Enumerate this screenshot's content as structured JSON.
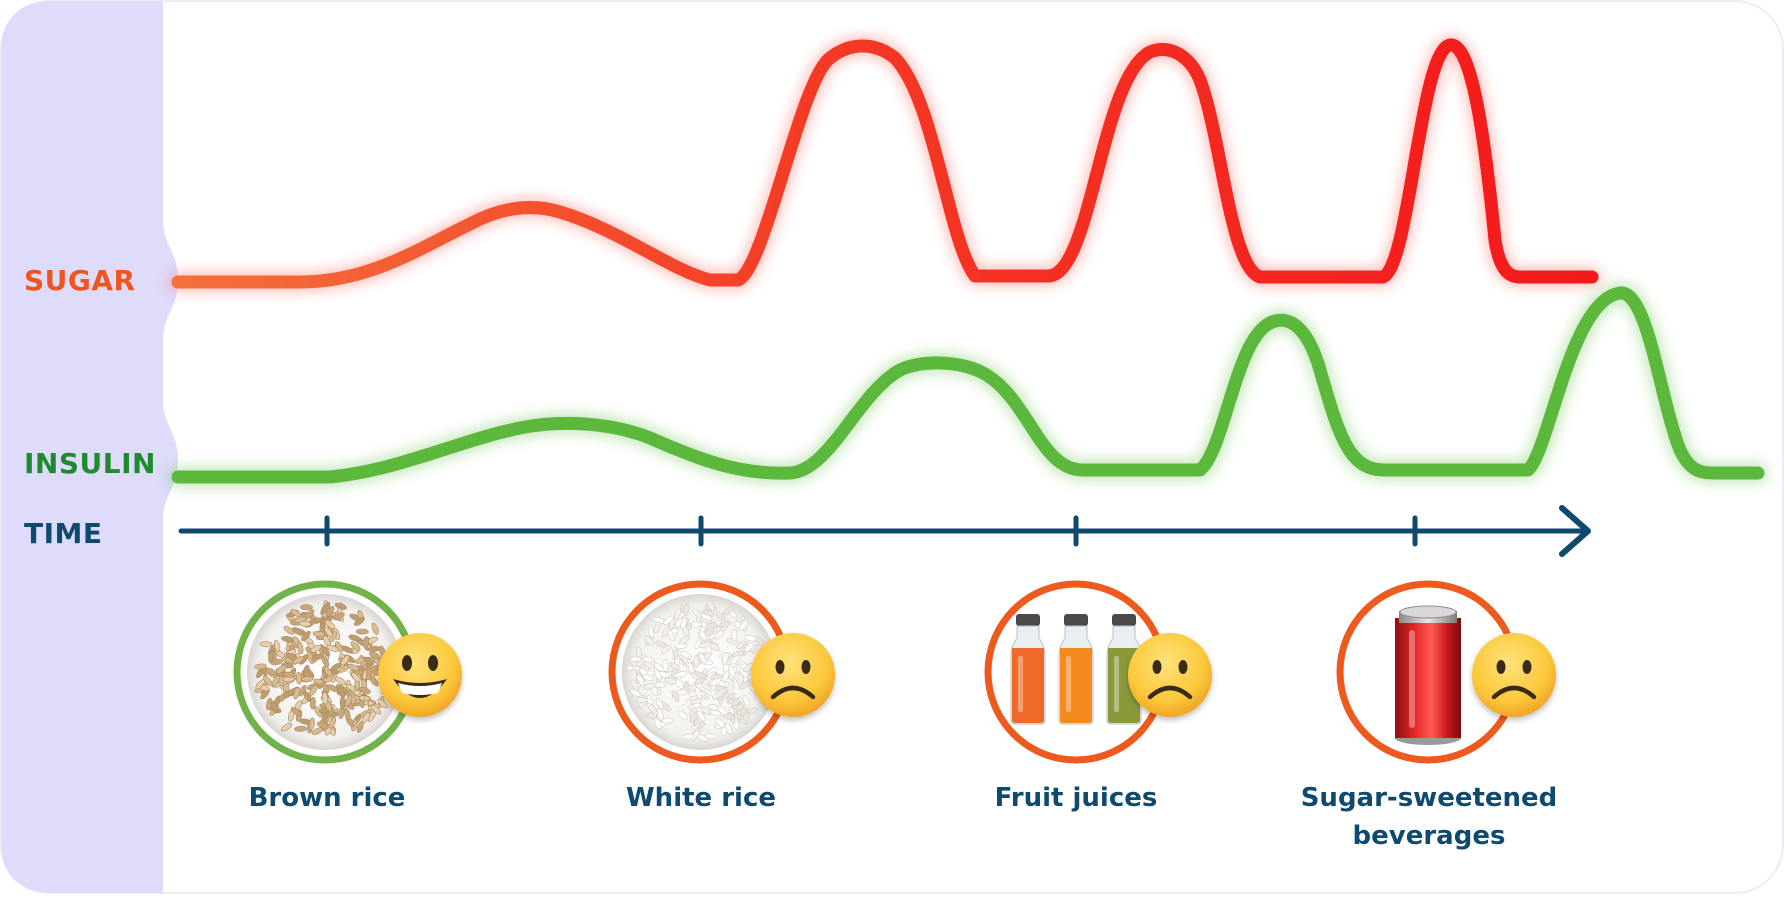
{
  "labels": {
    "sugar": "SUGAR",
    "insulin": "INSULIN",
    "time": "TIME"
  },
  "colors": {
    "panel": "#dedbfb",
    "sugar_label": "#f0551e",
    "insulin_label": "#1f8a2e",
    "time": "#0d4a6e",
    "sugar_curve_start": "#f4703c",
    "sugar_curve_end": "#f4181b",
    "insulin_curve": "#5cb83c",
    "ring_good": "#72b24a",
    "ring_bad": "#ed5a1d",
    "emoji_face": "#fbc83b"
  },
  "foods": [
    {
      "name": "Brown rice",
      "image": "brown-rice-bowl",
      "reaction": "grinning-face-icon",
      "rating": "good"
    },
    {
      "name": "White rice",
      "image": "white-rice-bowl",
      "reaction": "frowning-face-icon",
      "rating": "bad"
    },
    {
      "name": "Fruit juices",
      "image": "juice-bottles",
      "reaction": "frowning-face-icon",
      "rating": "bad"
    },
    {
      "name": "Sugar-sweetened beverages",
      "name_lines": [
        "Sugar-sweetened",
        "beverages"
      ],
      "image": "soda-can",
      "reaction": "frowning-face-icon",
      "rating": "bad"
    }
  ]
}
